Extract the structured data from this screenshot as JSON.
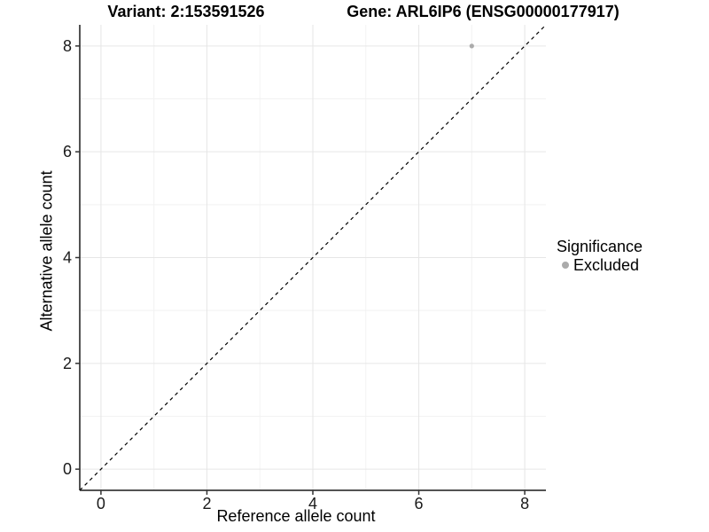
{
  "chart_data": {
    "type": "scatter",
    "title_left": "Variant: 2:153591526",
    "title_right": "Gene: ARL6IP6 (ENSG00000177917)",
    "xlabel": "Reference allele count",
    "ylabel": "Alternative allele count",
    "xlim": [
      -0.4,
      8.4
    ],
    "ylim": [
      -0.4,
      8.4
    ],
    "xticks": [
      0,
      2,
      4,
      6,
      8
    ],
    "yticks": [
      0,
      2,
      4,
      6,
      8
    ],
    "minor_ticks": [
      1,
      3,
      5,
      7
    ],
    "grid": true,
    "series": [
      {
        "name": "Excluded",
        "color": "#ababab",
        "points": [
          {
            "x": 7,
            "y": 8
          }
        ]
      }
    ],
    "reference_line": {
      "type": "identity",
      "style": "dashed",
      "color": "#000000"
    },
    "legend": {
      "title": "Significance",
      "position": "right",
      "items": [
        {
          "label": "Excluded",
          "color": "#ababab"
        }
      ]
    },
    "colors": {
      "axis_line": "#1a1a1a",
      "tick_mark": "#333333",
      "grid_major": "#e6e6e6",
      "grid_minor": "#f2f2f2",
      "background": "#ffffff"
    }
  }
}
